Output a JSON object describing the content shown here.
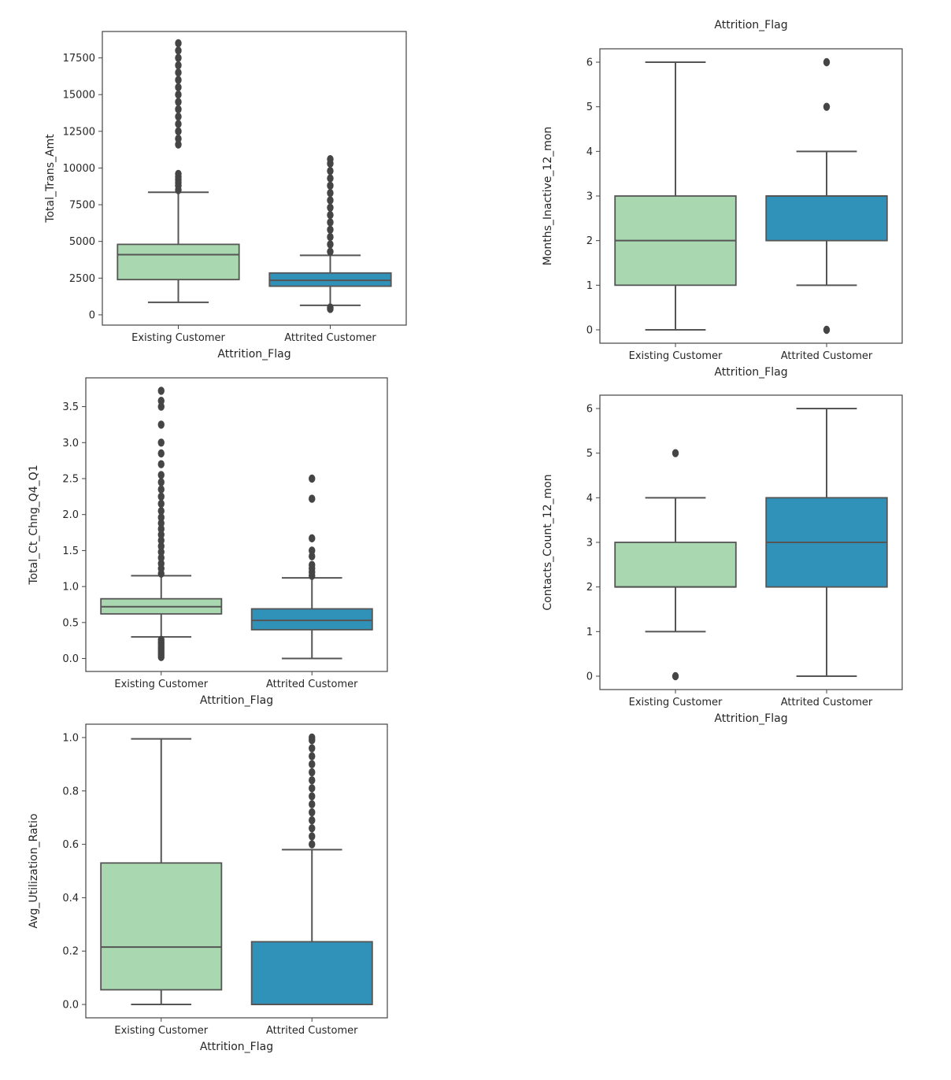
{
  "colors": {
    "existing": "#a9d8b0",
    "attrited": "#3192b9",
    "line": "#555555",
    "flier": "#454545"
  },
  "chart_data": [
    {
      "type": "box",
      "xlabel": "Attrition_Flag",
      "ylabel": "Total_Trans_Amt",
      "categories": [
        "Existing Customer",
        "Attrited Customer"
      ],
      "yticks": [
        0,
        2500,
        5000,
        7500,
        10000,
        12500,
        15000,
        17500
      ],
      "ylim": [
        -700,
        19300
      ],
      "boxes": [
        {
          "category": "Existing Customer",
          "whislo": 850,
          "q1": 2400,
          "med": 4100,
          "q3": 4800,
          "whishi": 8350,
          "fliers": [
            8500,
            8800,
            9000,
            9200,
            9400,
            9600,
            11600,
            12000,
            12500,
            13000,
            13500,
            14000,
            14500,
            15000,
            15500,
            16000,
            16500,
            17000,
            17500,
            18000,
            18500
          ]
        },
        {
          "category": "Attrited Customer",
          "whislo": 650,
          "q1": 1950,
          "med": 2350,
          "q3": 2850,
          "whishi": 4050,
          "fliers": [
            400,
            500,
            4300,
            4800,
            5300,
            5800,
            6300,
            6800,
            7300,
            7800,
            8300,
            8800,
            9300,
            9800,
            10300,
            10600
          ]
        }
      ]
    },
    {
      "type": "box",
      "title": "Attrition_Flag",
      "xlabel": "Attrition_Flag",
      "ylabel": "Months_Inactive_12_mon",
      "categories": [
        "Existing Customer",
        "Attrited Customer"
      ],
      "yticks": [
        0,
        1,
        2,
        3,
        4,
        5,
        6
      ],
      "ylim": [
        -0.3,
        6.3
      ],
      "boxes": [
        {
          "category": "Existing Customer",
          "whislo": 0,
          "q1": 1,
          "med": 2,
          "q3": 3,
          "whishi": 6,
          "fliers": []
        },
        {
          "category": "Attrited Customer",
          "whislo": 1,
          "q1": 2,
          "med": 3,
          "q3": 3,
          "whishi": 4,
          "fliers": [
            0,
            5,
            6
          ]
        }
      ]
    },
    {
      "type": "box",
      "xlabel": "Attrition_Flag",
      "ylabel": "Total_Ct_Chng_Q4_Q1",
      "categories": [
        "Existing Customer",
        "Attrited Customer"
      ],
      "yticks": [
        0.0,
        0.5,
        1.0,
        1.5,
        2.0,
        2.5,
        3.0,
        3.5
      ],
      "ylim": [
        -0.18,
        3.9
      ],
      "boxes": [
        {
          "category": "Existing Customer",
          "whislo": 0.3,
          "q1": 0.62,
          "med": 0.72,
          "q3": 0.83,
          "whishi": 1.15,
          "fliers": [
            0.02,
            0.05,
            0.08,
            0.11,
            0.14,
            0.17,
            0.2,
            0.23,
            0.26,
            1.18,
            1.25,
            1.32,
            1.4,
            1.48,
            1.56,
            1.64,
            1.72,
            1.8,
            1.88,
            1.96,
            2.05,
            2.15,
            2.25,
            2.35,
            2.45,
            2.55,
            2.7,
            2.85,
            3.0,
            3.25,
            3.5,
            3.58,
            3.72
          ]
        },
        {
          "category": "Attrited Customer",
          "whislo": 0.0,
          "q1": 0.4,
          "med": 0.53,
          "q3": 0.69,
          "whishi": 1.12,
          "fliers": [
            1.15,
            1.2,
            1.25,
            1.3,
            1.42,
            1.5,
            1.67,
            2.22,
            2.5
          ]
        }
      ]
    },
    {
      "type": "box",
      "xlabel": "Attrition_Flag",
      "ylabel": "Contacts_Count_12_mon",
      "categories": [
        "Existing Customer",
        "Attrited Customer"
      ],
      "yticks": [
        0,
        1,
        2,
        3,
        4,
        5,
        6
      ],
      "ylim": [
        -0.3,
        6.3
      ],
      "boxes": [
        {
          "category": "Existing Customer",
          "whislo": 1,
          "q1": 2,
          "med": 2,
          "q3": 3,
          "whishi": 4,
          "fliers": [
            0,
            5
          ]
        },
        {
          "category": "Attrited Customer",
          "whislo": 0,
          "q1": 2,
          "med": 3,
          "q3": 4,
          "whishi": 6,
          "fliers": []
        }
      ]
    },
    {
      "type": "box",
      "xlabel": "Attrition_Flag",
      "ylabel": "Avg_Utilization_Ratio",
      "categories": [
        "Existing Customer",
        "Attrited Customer"
      ],
      "yticks": [
        0.0,
        0.2,
        0.4,
        0.6,
        0.8,
        1.0
      ],
      "ylim": [
        -0.05,
        1.05
      ],
      "boxes": [
        {
          "category": "Existing Customer",
          "whislo": 0.0,
          "q1": 0.055,
          "med": 0.215,
          "q3": 0.53,
          "whishi": 0.995,
          "fliers": []
        },
        {
          "category": "Attrited Customer",
          "whislo": 0.0,
          "q1": 0.0,
          "med": 0.0,
          "q3": 0.235,
          "whishi": 0.58,
          "fliers": [
            0.6,
            0.63,
            0.66,
            0.69,
            0.72,
            0.75,
            0.78,
            0.81,
            0.84,
            0.87,
            0.9,
            0.93,
            0.96,
            0.99,
            1.0
          ]
        }
      ]
    }
  ]
}
